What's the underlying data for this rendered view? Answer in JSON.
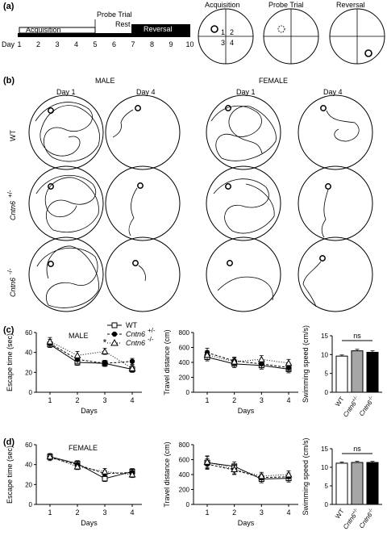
{
  "panel_labels": {
    "a": "(a)",
    "b": "(b)",
    "c": "(c)",
    "d": "(d)"
  },
  "timeline": {
    "day_label": "Day",
    "days": [
      "1",
      "2",
      "3",
      "4",
      "5",
      "6",
      "7",
      "8",
      "9",
      "10"
    ],
    "acquisition": "Acquisition",
    "probe_trial": "Probe Trial",
    "rest": "Rest",
    "reversal": "Reversal",
    "quadrant_numbers": [
      "1",
      "2",
      "3",
      "4"
    ],
    "pool_titles": [
      "Acquisition",
      "Probe Trial",
      "Reversal"
    ]
  },
  "tracks": {
    "male": "MALE",
    "female": "FEMALE",
    "day1": "Day 1",
    "day4": "Day 4",
    "genotypes": [
      "WT",
      "Cntn6",
      "Cntn6"
    ],
    "superscripts": [
      "",
      "+/-",
      "-/-"
    ]
  },
  "legend": {
    "items": [
      {
        "name": "WT",
        "sup": "",
        "marker": "square-open",
        "dash": "solid"
      },
      {
        "name": "Cntn6",
        "sup": "+/-",
        "marker": "circle-filled",
        "dash": "dashed"
      },
      {
        "name": "Cntn6",
        "sup": "-/-",
        "marker": "triangle-open",
        "dash": "dotted"
      }
    ]
  },
  "chart_data": [
    {
      "panel": "c",
      "type": "line",
      "title": "MALE",
      "ylabel": "Escape time (sec)",
      "xlabel": "Days",
      "x": [
        1,
        2,
        3,
        4
      ],
      "ylim": [
        0,
        60
      ],
      "yticks": [
        0,
        20,
        40,
        60
      ],
      "series": [
        {
          "name": "WT",
          "values": [
            48,
            30,
            29,
            23
          ],
          "err": [
            3,
            3,
            3,
            3
          ]
        },
        {
          "name": "Cntn6+/-",
          "values": [
            49,
            33,
            29,
            31
          ],
          "err": [
            4,
            4,
            3,
            3
          ]
        },
        {
          "name": "Cntn6-/-",
          "values": [
            51,
            37,
            41,
            24
          ],
          "err": [
            4,
            4,
            3,
            3
          ]
        }
      ],
      "annotations": [
        {
          "x": 3,
          "text": "*"
        }
      ]
    },
    {
      "panel": "c",
      "type": "line",
      "ylabel": "Travel distance (cm)",
      "xlabel": "Days",
      "x": [
        1,
        2,
        3,
        4
      ],
      "ylim": [
        0,
        800
      ],
      "yticks": [
        0,
        200,
        400,
        600,
        800
      ],
      "series": [
        {
          "name": "WT",
          "values": [
            470,
            380,
            360,
            310
          ],
          "err": [
            50,
            50,
            50,
            50
          ]
        },
        {
          "name": "Cntn6+/-",
          "values": [
            530,
            420,
            380,
            330
          ],
          "err": [
            60,
            50,
            50,
            40
          ]
        },
        {
          "name": "Cntn6-/-",
          "values": [
            500,
            410,
            440,
            390
          ],
          "err": [
            60,
            50,
            50,
            50
          ]
        }
      ]
    },
    {
      "panel": "c",
      "type": "bar",
      "ylabel": "Swimming speed (cm/s)",
      "categories": [
        "WT",
        "Cntn6",
        "Cntn6"
      ],
      "superscripts": [
        "",
        "+/-",
        "-/-"
      ],
      "values": [
        9.6,
        11.0,
        10.6
      ],
      "err": [
        0.3,
        0.4,
        0.4
      ],
      "ylim": [
        0,
        15
      ],
      "yticks": [
        0,
        5,
        10,
        15
      ],
      "annotation": "ns"
    },
    {
      "panel": "d",
      "type": "line",
      "title": "FEMALE",
      "ylabel": "Escape time (sec)",
      "xlabel": "Days",
      "x": [
        1,
        2,
        3,
        4
      ],
      "ylim": [
        0,
        60
      ],
      "yticks": [
        0,
        20,
        40,
        60
      ],
      "series": [
        {
          "name": "WT",
          "values": [
            48,
            41,
            26,
            33
          ],
          "err": [
            3,
            3,
            3,
            3
          ]
        },
        {
          "name": "Cntn6+/-",
          "values": [
            47,
            40,
            31,
            32
          ],
          "err": [
            3,
            3,
            3,
            3
          ]
        },
        {
          "name": "Cntn6-/-",
          "values": [
            48,
            38,
            33,
            30
          ],
          "err": [
            3,
            3,
            3,
            3
          ]
        }
      ]
    },
    {
      "panel": "d",
      "type": "line",
      "ylabel": "Travel distance (cm)",
      "xlabel": "Days",
      "x": [
        1,
        2,
        3,
        4
      ],
      "ylim": [
        0,
        800
      ],
      "yticks": [
        0,
        200,
        400,
        600,
        800
      ],
      "series": [
        {
          "name": "WT",
          "values": [
            560,
            510,
            340,
            350
          ],
          "err": [
            80,
            60,
            50,
            50
          ]
        },
        {
          "name": "Cntn6+/-",
          "values": [
            540,
            460,
            360,
            370
          ],
          "err": [
            70,
            60,
            50,
            50
          ]
        },
        {
          "name": "Cntn6-/-",
          "values": [
            570,
            470,
            380,
            400
          ],
          "err": [
            80,
            60,
            50,
            50
          ]
        }
      ]
    },
    {
      "panel": "d",
      "type": "bar",
      "ylabel": "Swimming speed (cm/s)",
      "categories": [
        "WT",
        "Cntn6",
        "Cntn6"
      ],
      "superscripts": [
        "",
        "+/-",
        "-/-"
      ],
      "values": [
        11.1,
        11.3,
        11.3
      ],
      "err": [
        0.3,
        0.3,
        0.3
      ],
      "ylim": [
        0,
        15
      ],
      "yticks": [
        0,
        5,
        10,
        15
      ],
      "annotation": "ns"
    }
  ]
}
